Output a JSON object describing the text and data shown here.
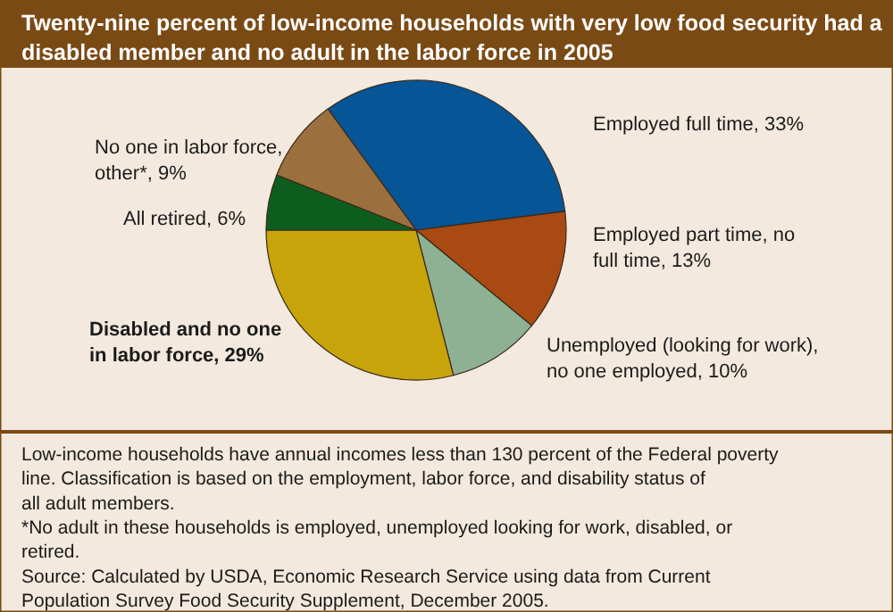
{
  "chart_data": {
    "type": "pie",
    "title": "Twenty-nine percent of low-income households with very low food security had a disabled member and no adult in the labor force in 2005",
    "categories": [
      "Employed full time",
      "Employed part time, no full time",
      "Unemployed (looking for work), no one employed",
      "Disabled and no one in labor force",
      "All retired",
      "No one in labor force, other*"
    ],
    "values": [
      33,
      13,
      10,
      29,
      6,
      9
    ],
    "value_labels": [
      "33%",
      "13%",
      "10%",
      "29%",
      "6%",
      "9%"
    ],
    "colors": [
      "#065596",
      "#a84a12",
      "#8fb193",
      "#c6a40a",
      "#0d5e1e",
      "#9c6f3e"
    ],
    "annotations": [
      "Low-income households have annual incomes less than 130 percent of the Federal poverty line. Classification is based on the employment, labor force, and disability status of all adult members.",
      "*No adult in these households is employed, unemployed looking for work, disabled, or retired.",
      "Source: Calculated by USDA, Economic Research Service using data from Current Population Survey Food Security Supplement, December 2005."
    ]
  }
}
